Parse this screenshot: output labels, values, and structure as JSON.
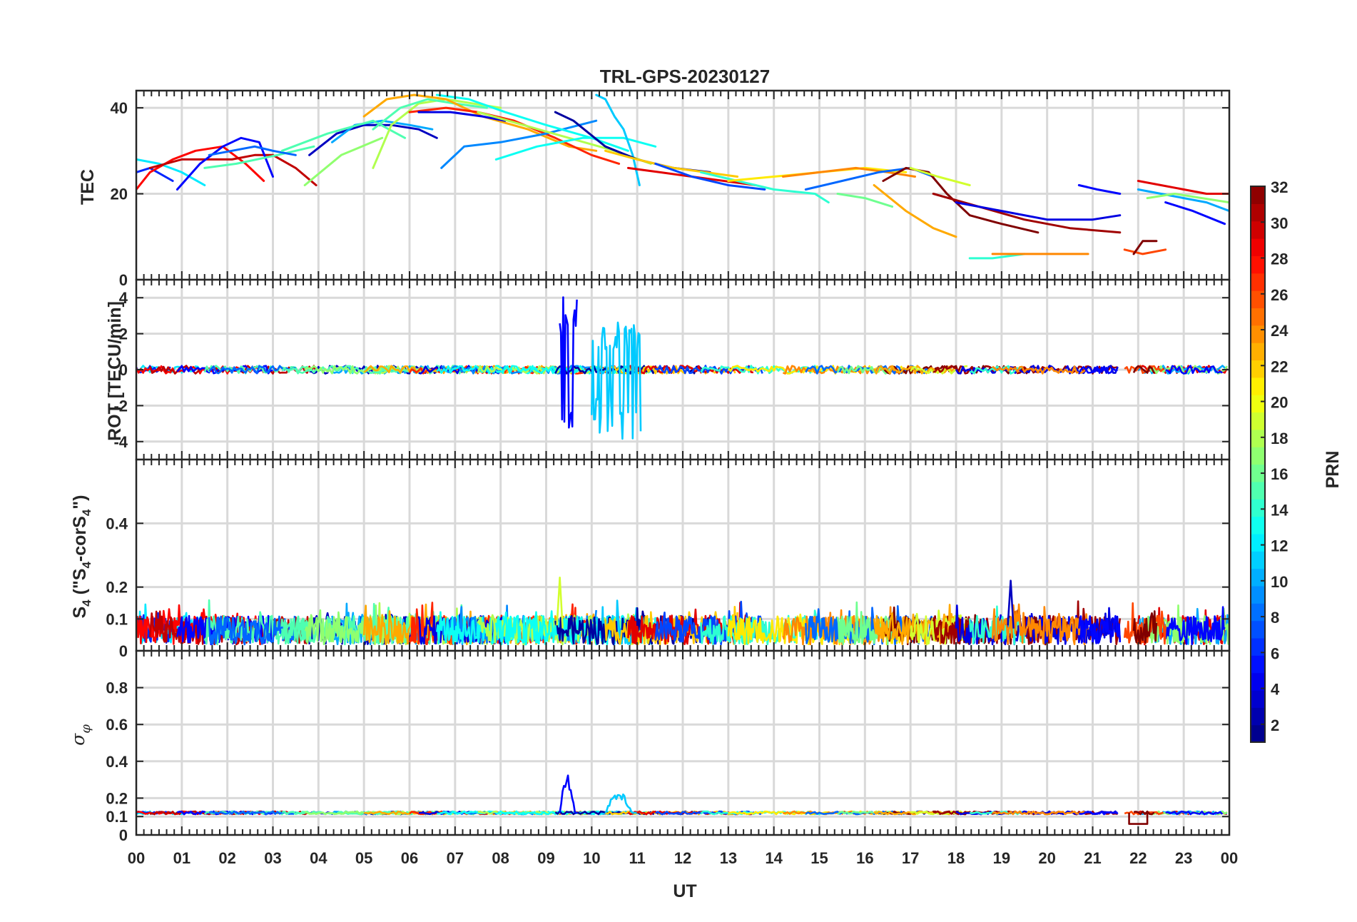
{
  "figure": {
    "title": "TRL-GPS-20230127",
    "xlabel": "UT"
  },
  "chart_data": [
    {
      "type": "line",
      "panel": "tec",
      "title": "TRL-GPS-20230127",
      "ylabel": "TEC",
      "ylim": [
        0,
        44
      ],
      "yticks": [
        "0",
        "20",
        "40"
      ],
      "xlim": [
        0,
        24
      ],
      "xticks": [
        "00",
        "01",
        "02",
        "03",
        "04",
        "05",
        "06",
        "07",
        "08",
        "09",
        "10",
        "11",
        "12",
        "13",
        "14",
        "15",
        "16",
        "17",
        "18",
        "19",
        "20",
        "21",
        "22",
        "23",
        "00"
      ],
      "series": [
        {
          "prn": 12,
          "x": [
            0.0,
            0.5,
            1.0,
            1.5
          ],
          "y": [
            28,
            27,
            25,
            22
          ]
        },
        {
          "prn": 6,
          "x": [
            0.0,
            0.3,
            0.8
          ],
          "y": [
            25,
            26,
            23
          ]
        },
        {
          "prn": 28,
          "x": [
            0.0,
            0.3,
            0.8,
            1.3,
            1.9,
            2.4,
            2.8
          ],
          "y": [
            21,
            25,
            28,
            30,
            31,
            27,
            23
          ]
        },
        {
          "prn": 30,
          "x": [
            0.3,
            1.0,
            1.6,
            2.1,
            2.6,
            3.0,
            3.5,
            3.95
          ],
          "y": [
            26,
            28,
            28,
            28,
            29,
            29,
            26,
            22
          ]
        },
        {
          "prn": 5,
          "x": [
            0.9,
            1.4,
            1.9,
            2.3,
            2.7,
            3.0
          ],
          "y": [
            21,
            27,
            31,
            33,
            32,
            24
          ]
        },
        {
          "prn": 15,
          "x": [
            1.5,
            2.2,
            3.1,
            3.9
          ],
          "y": [
            26,
            27,
            29,
            31
          ]
        },
        {
          "prn": 8,
          "x": [
            1.6,
            2.1,
            2.6,
            3.0,
            3.5
          ],
          "y": [
            29,
            30,
            31,
            30,
            29
          ]
        },
        {
          "prn": 3,
          "x": [
            3.8,
            4.4,
            5.0,
            5.6,
            6.2,
            6.6
          ],
          "y": [
            29,
            34,
            36,
            36,
            35,
            33
          ]
        },
        {
          "prn": 10,
          "x": [
            4.3,
            4.8,
            5.4,
            6.0,
            6.5
          ],
          "y": [
            32,
            36,
            37,
            36,
            35
          ]
        },
        {
          "prn": 15,
          "x": [
            3.2,
            4.2,
            5.2,
            5.9
          ],
          "y": [
            30,
            34,
            37,
            33
          ]
        },
        {
          "prn": 17,
          "x": [
            3.7,
            4.5,
            5.4
          ],
          "y": [
            22,
            29,
            33
          ]
        },
        {
          "prn": 18,
          "x": [
            5.2,
            5.6,
            6.2,
            6.8,
            7.4,
            8.0
          ],
          "y": [
            26,
            36,
            41,
            42,
            41,
            40
          ]
        },
        {
          "prn": 15,
          "x": [
            5.2,
            5.8,
            6.4,
            7.0,
            7.7
          ],
          "y": [
            35,
            40,
            42,
            41,
            40
          ]
        },
        {
          "prn": 23,
          "x": [
            5.0,
            5.5,
            6.1,
            6.8,
            7.6,
            8.6,
            9.5,
            10.1
          ],
          "y": [
            38,
            42,
            43,
            42,
            38,
            35,
            31,
            30
          ]
        },
        {
          "prn": 27,
          "x": [
            6.0,
            6.8,
            7.5,
            8.3,
            9.2,
            10.0,
            10.6
          ],
          "y": [
            39,
            40,
            39,
            37,
            33,
            29,
            27
          ]
        },
        {
          "prn": 4,
          "x": [
            6.2,
            6.9,
            7.6,
            8.1
          ],
          "y": [
            39,
            39,
            38,
            37
          ]
        },
        {
          "prn": 9,
          "x": [
            6.7,
            7.2,
            8.0,
            9.0,
            10.1
          ],
          "y": [
            26,
            31,
            32,
            34,
            37
          ]
        },
        {
          "prn": 13,
          "x": [
            6.6,
            7.3,
            8.1,
            9.0,
            10.0,
            10.8
          ],
          "y": [
            43,
            42,
            39,
            36,
            33,
            30
          ]
        },
        {
          "prn": 18,
          "x": [
            7.5,
            8.5,
            9.5,
            10.5,
            11.3
          ],
          "y": [
            39,
            36,
            33,
            30,
            27
          ]
        },
        {
          "prn": 13,
          "x": [
            7.9,
            8.8,
            9.8,
            10.7,
            11.4
          ],
          "y": [
            28,
            31,
            33,
            33,
            31
          ]
        },
        {
          "prn": 11,
          "x": [
            10.1,
            10.3,
            10.5,
            10.7,
            10.9,
            11.05
          ],
          "y": [
            43,
            42,
            38,
            35,
            29,
            22
          ]
        },
        {
          "prn": 2,
          "x": [
            9.2,
            9.6,
            10.3,
            11.0,
            11.8,
            12.6
          ],
          "y": [
            39,
            37,
            31,
            28,
            26,
            25
          ]
        },
        {
          "prn": 22,
          "x": [
            10.3,
            11.0,
            11.8,
            12.5,
            13.2
          ],
          "y": [
            30,
            28,
            26,
            25,
            24
          ]
        },
        {
          "prn": 29,
          "x": [
            10.8,
            11.5,
            12.2,
            12.9,
            13.6
          ],
          "y": [
            26,
            25,
            24,
            23,
            22
          ]
        },
        {
          "prn": 7,
          "x": [
            11.4,
            12.2,
            13.0,
            13.8
          ],
          "y": [
            27,
            24,
            22,
            21
          ]
        },
        {
          "prn": 14,
          "x": [
            12.4,
            13.2,
            14.0,
            14.9,
            15.2
          ],
          "y": [
            25,
            23,
            21,
            20,
            18
          ]
        },
        {
          "prn": 21,
          "x": [
            13.0,
            14.0,
            15.0,
            16.0,
            16.9
          ],
          "y": [
            23,
            24,
            25,
            26,
            25
          ]
        },
        {
          "prn": 24,
          "x": [
            14.2,
            15.0,
            15.8,
            16.5,
            17.1
          ],
          "y": [
            24,
            25,
            26,
            25,
            24
          ]
        },
        {
          "prn": 8,
          "x": [
            14.7,
            15.5,
            16.3,
            17.0,
            17.5
          ],
          "y": [
            21,
            23,
            25,
            26,
            24
          ]
        },
        {
          "prn": 16,
          "x": [
            15.4,
            16.0,
            16.6
          ],
          "y": [
            20,
            19,
            17
          ]
        },
        {
          "prn": 32,
          "x": [
            16.4,
            16.9,
            17.4,
            17.8,
            18.3,
            19.0,
            19.8
          ],
          "y": [
            23,
            26,
            25,
            20,
            15,
            13,
            11
          ]
        },
        {
          "prn": 23,
          "x": [
            16.2,
            16.9,
            17.5,
            18.0
          ],
          "y": [
            22,
            16,
            12,
            10
          ]
        },
        {
          "prn": 19,
          "x": [
            17.0,
            17.6,
            18.3
          ],
          "y": [
            26,
            24,
            22
          ]
        },
        {
          "prn": 31,
          "x": [
            17.5,
            18.5,
            19.5,
            20.5,
            21.6
          ],
          "y": [
            20,
            17,
            14,
            12,
            11
          ]
        },
        {
          "prn": 4,
          "x": [
            18.0,
            19.0,
            20.0,
            21.0,
            21.6
          ],
          "y": [
            18,
            16,
            14,
            14,
            15
          ]
        },
        {
          "prn": 14,
          "x": [
            18.3,
            18.8,
            19.5
          ],
          "y": [
            5,
            5,
            6
          ]
        },
        {
          "prn": 24,
          "x": [
            18.8,
            19.5,
            20.2,
            20.9
          ],
          "y": [
            6,
            6,
            6,
            6
          ]
        },
        {
          "prn": 5,
          "x": [
            20.7,
            21.1,
            21.6
          ],
          "y": [
            22,
            21,
            20
          ]
        },
        {
          "prn": 29,
          "x": [
            22.0,
            22.5,
            23.0,
            23.5,
            24.0
          ],
          "y": [
            23,
            22,
            21,
            20,
            20
          ]
        },
        {
          "prn": 10,
          "x": [
            22.0,
            22.5,
            23.0,
            23.5,
            24.0
          ],
          "y": [
            21,
            20,
            19,
            18,
            16
          ]
        },
        {
          "prn": 17,
          "x": [
            22.2,
            22.8,
            23.4,
            24.0
          ],
          "y": [
            19,
            20,
            19,
            18
          ]
        },
        {
          "prn": 5,
          "x": [
            22.6,
            23.2,
            23.9
          ],
          "y": [
            18,
            16,
            13
          ]
        },
        {
          "prn": 26,
          "x": [
            21.7,
            22.1,
            22.6
          ],
          "y": [
            7,
            6,
            7
          ]
        },
        {
          "prn": 32,
          "x": [
            21.9,
            22.1,
            22.4
          ],
          "y": [
            6,
            9,
            9
          ]
        }
      ]
    },
    {
      "type": "line",
      "panel": "rot",
      "ylabel": "ROT [TECU/min]",
      "ylim": [
        -5,
        5
      ],
      "yticks": [
        "-4",
        "-2",
        "0",
        "2",
        "4"
      ],
      "xlim": [
        0,
        24
      ],
      "notable": [
        {
          "prn": 5,
          "x_range": [
            9.3,
            9.7
          ],
          "y_range": [
            -3.3,
            4.2
          ]
        },
        {
          "prn": 11,
          "x_range": [
            10.0,
            11.1
          ],
          "y_range": [
            -3.9,
            2.7
          ]
        }
      ],
      "baseline": "near 0 for all PRNs"
    },
    {
      "type": "line",
      "panel": "s4",
      "ylabel": "S4 (\"S4-corS4\")",
      "ylim": [
        0,
        0.6
      ],
      "yticks": [
        "0",
        "0.1",
        "0.2",
        "0.4"
      ],
      "xlim": [
        0,
        24
      ],
      "notable": [
        {
          "x": 9.3,
          "y": 0.23
        },
        {
          "x": 19.2,
          "y": 0.22
        }
      ],
      "baseline": "0.02 to 0.15 for all PRNs"
    },
    {
      "type": "line",
      "panel": "sigma_phi",
      "ylabel": "σφ",
      "ylim": [
        0,
        1
      ],
      "yticks": [
        "0",
        "0.1",
        "0.2",
        "0.4",
        "0.6",
        "0.8"
      ],
      "xlim": [
        0,
        24
      ],
      "notable": [
        {
          "prn": 5,
          "x_range": [
            9.3,
            9.7
          ],
          "y_max": 0.34
        },
        {
          "prn": 11,
          "x_range": [
            10.3,
            11.0
          ],
          "y_max": 0.24
        },
        {
          "prn": 32,
          "x_range": [
            21.8,
            22.2
          ],
          "y": 0.06
        }
      ],
      "baseline": "about 0.12 for all PRNs"
    }
  ],
  "colorbar": {
    "label": "PRN",
    "range": [
      1,
      32
    ],
    "ticks": [
      "2",
      "4",
      "6",
      "8",
      "10",
      "12",
      "14",
      "16",
      "18",
      "20",
      "22",
      "24",
      "26",
      "28",
      "30",
      "32"
    ],
    "colormap": "jet"
  }
}
